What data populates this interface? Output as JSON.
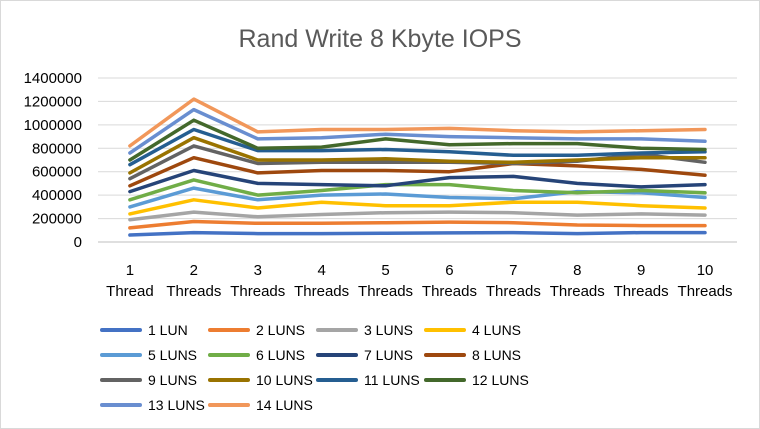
{
  "chart_data": {
    "type": "line",
    "title": "Rand Write 8 Kbyte IOPS",
    "xlabel": "",
    "ylabel": "",
    "ylim": [
      0,
      1400000
    ],
    "yticks": [
      "0",
      "200000",
      "400000",
      "600000",
      "800000",
      "1000000",
      "1200000",
      "1400000"
    ],
    "categories": [
      [
        "1",
        "Thread"
      ],
      [
        "2",
        "Threads"
      ],
      [
        "3",
        "Threads"
      ],
      [
        "4",
        "Threads"
      ],
      [
        "5",
        "Threads"
      ],
      [
        "6",
        "Threads"
      ],
      [
        "7",
        "Threads"
      ],
      [
        "8",
        "Threads"
      ],
      [
        "9",
        "Threads"
      ],
      [
        "10",
        "Threads"
      ]
    ],
    "grid": "horizontal",
    "legend_position": "bottom",
    "series": [
      {
        "name": "1 LUN",
        "color": "#4472C4",
        "values": [
          60000,
          80000,
          72000,
          72000,
          75000,
          78000,
          80000,
          72000,
          80000,
          80000
        ]
      },
      {
        "name": "2 LUNS",
        "color": "#ED7D31",
        "values": [
          120000,
          175000,
          160000,
          160000,
          165000,
          170000,
          165000,
          145000,
          140000,
          140000
        ]
      },
      {
        "name": "3 LUNS",
        "color": "#A5A5A5",
        "values": [
          190000,
          255000,
          215000,
          235000,
          250000,
          255000,
          250000,
          230000,
          240000,
          230000
        ]
      },
      {
        "name": "4 LUNS",
        "color": "#FFC000",
        "values": [
          240000,
          360000,
          290000,
          340000,
          310000,
          310000,
          340000,
          340000,
          310000,
          290000
        ]
      },
      {
        "name": "5 LUNS",
        "color": "#5B9BD5",
        "values": [
          300000,
          460000,
          360000,
          400000,
          410000,
          380000,
          370000,
          430000,
          420000,
          380000
        ]
      },
      {
        "name": "6 LUNS",
        "color": "#70AD47",
        "values": [
          360000,
          530000,
          400000,
          440000,
          490000,
          490000,
          440000,
          420000,
          440000,
          420000
        ]
      },
      {
        "name": "7 LUNS",
        "color": "#264478",
        "values": [
          430000,
          610000,
          500000,
          490000,
          480000,
          550000,
          560000,
          500000,
          470000,
          490000
        ]
      },
      {
        "name": "8 LUNS",
        "color": "#9E480E",
        "values": [
          480000,
          720000,
          590000,
          610000,
          610000,
          600000,
          670000,
          650000,
          620000,
          570000
        ]
      },
      {
        "name": "9 LUNS",
        "color": "#636363",
        "values": [
          540000,
          820000,
          670000,
          680000,
          680000,
          680000,
          670000,
          690000,
          750000,
          680000
        ]
      },
      {
        "name": "10 LUNS",
        "color": "#997300",
        "values": [
          590000,
          890000,
          700000,
          700000,
          710000,
          690000,
          680000,
          700000,
          720000,
          720000
        ]
      },
      {
        "name": "11 LUNS",
        "color": "#255E91",
        "values": [
          660000,
          960000,
          780000,
          780000,
          790000,
          770000,
          740000,
          740000,
          760000,
          770000
        ]
      },
      {
        "name": "12 LUNS",
        "color": "#43682B",
        "values": [
          700000,
          1040000,
          800000,
          810000,
          880000,
          830000,
          840000,
          840000,
          800000,
          790000
        ]
      },
      {
        "name": "13 LUNS",
        "color": "#698ED0",
        "values": [
          760000,
          1130000,
          880000,
          890000,
          920000,
          900000,
          890000,
          880000,
          880000,
          860000
        ]
      },
      {
        "name": "14 LUNS",
        "color": "#F1975A",
        "values": [
          820000,
          1220000,
          940000,
          960000,
          960000,
          970000,
          950000,
          940000,
          950000,
          960000
        ]
      }
    ]
  }
}
